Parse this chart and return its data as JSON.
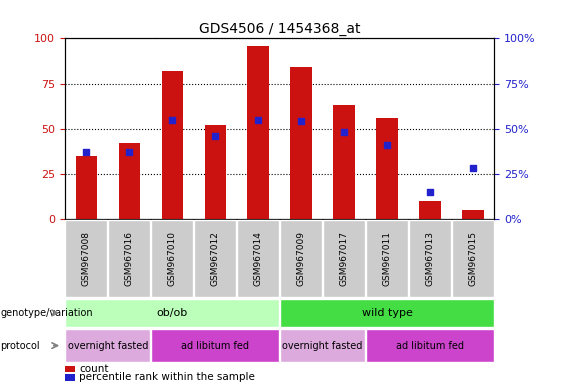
{
  "title": "GDS4506 / 1454368_at",
  "samples": [
    "GSM967008",
    "GSM967016",
    "GSM967010",
    "GSM967012",
    "GSM967014",
    "GSM967009",
    "GSM967017",
    "GSM967011",
    "GSM967013",
    "GSM967015"
  ],
  "count_values": [
    35,
    42,
    82,
    52,
    96,
    84,
    63,
    56,
    10,
    5
  ],
  "percentile_values": [
    37,
    37,
    55,
    46,
    55,
    54,
    48,
    41,
    15,
    28
  ],
  "ylim": [
    0,
    100
  ],
  "bar_color": "#cc1111",
  "dot_color": "#2222cc",
  "bg_color": "#ffffff",
  "left_axis_color": "#cc1111",
  "right_axis_color": "#2222cc",
  "label_box_color": "#cccccc",
  "genotype_groups": [
    {
      "label": "ob/ob",
      "start": 0,
      "end": 5,
      "color": "#bbffbb"
    },
    {
      "label": "wild type",
      "start": 5,
      "end": 10,
      "color": "#44dd44"
    }
  ],
  "protocol_groups": [
    {
      "label": "overnight fasted",
      "start": 0,
      "end": 2,
      "color": "#ddaadd"
    },
    {
      "label": "ad libitum fed",
      "start": 2,
      "end": 5,
      "color": "#cc44cc"
    },
    {
      "label": "overnight fasted",
      "start": 5,
      "end": 7,
      "color": "#ddaadd"
    },
    {
      "label": "ad libitum fed",
      "start": 7,
      "end": 10,
      "color": "#cc44cc"
    }
  ],
  "legend_count_label": "count",
  "legend_pct_label": "percentile rank within the sample",
  "bar_width": 0.5,
  "genotype_label": "genotype/variation",
  "protocol_label": "protocol"
}
